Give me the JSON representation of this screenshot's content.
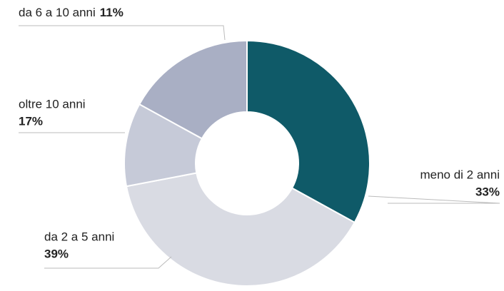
{
  "chart_data": {
    "type": "pie",
    "categories": [
      "meno di 2 anni",
      "da 2 a 5 anni",
      "da 6 a 10 anni",
      "oltre 10 anni"
    ],
    "values": [
      33,
      39,
      11,
      17
    ],
    "value_labels": [
      "33%",
      "39%",
      "11%",
      "17%"
    ],
    "colors": [
      "#0f5a68",
      "#d9dbe3",
      "#c6cad8",
      "#a9afc4"
    ]
  }
}
